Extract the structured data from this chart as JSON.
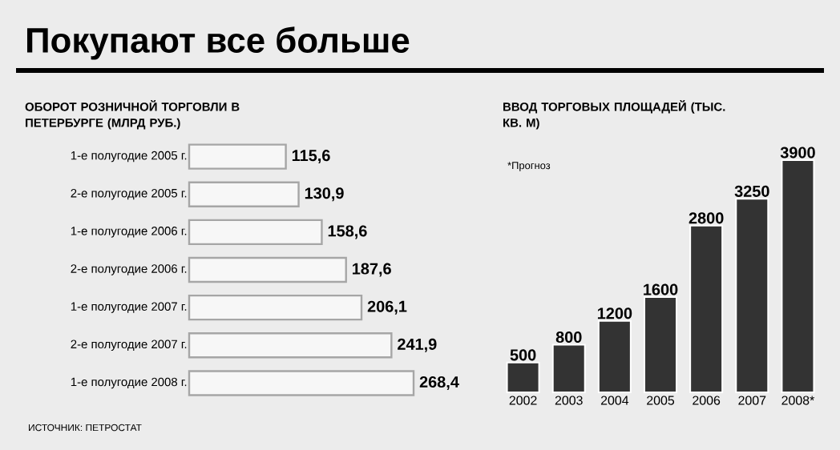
{
  "chart_data": [
    {
      "type": "bar",
      "orientation": "horizontal",
      "title": "Покупают все больше",
      "subtitle": "ОБОРОТ РОЗНИЧНОЙ ТОРГОВЛИ В ПЕТЕРБУРГЕ (МЛРД РУБ.)",
      "categories": [
        "1-е полугодие 2005 г.",
        "2-е полугодие 2005 г.",
        "1-е полугодие 2006 г.",
        "2-е полугодие 2006 г.",
        "1-е полугодие 2007 г.",
        "2-е полугодие 2007 г.",
        "1-е полугодие 2008 г."
      ],
      "values": [
        115.6,
        130.9,
        158.6,
        187.6,
        206.1,
        241.9,
        268.4
      ],
      "value_labels": [
        "115,6",
        "130,9",
        "158,6",
        "187,6",
        "206,1",
        "241,9",
        "268,4"
      ],
      "color": "#f7f7f7",
      "annotations": [
        "ИСТОЧНИК: ПЕТРОСТАТ"
      ]
    },
    {
      "type": "bar",
      "title": "ВВОД ТОРГОВЫХ ПЛОЩАДЕЙ (ТЫС. КВ. М)",
      "categories": [
        "2002",
        "2003",
        "2004",
        "2005",
        "2006",
        "2007",
        "2008*"
      ],
      "values": [
        500,
        800,
        1200,
        1600,
        2800,
        3250,
        3900
      ],
      "data_labels": true,
      "color": "#333333",
      "annotations": [
        "*Прогноз"
      ]
    }
  ]
}
